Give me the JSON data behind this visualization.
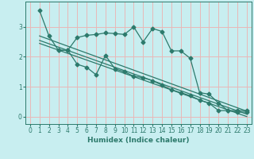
{
  "title": "",
  "xlabel": "Humidex (Indice chaleur)",
  "ylabel": "",
  "background_color": "#c8eef0",
  "grid_color": "#e8b8b8",
  "line_color": "#2d7a6c",
  "xlim": [
    -0.5,
    23.5
  ],
  "ylim": [
    -0.25,
    3.85
  ],
  "yticks": [
    0,
    1,
    2,
    3
  ],
  "xticks": [
    0,
    1,
    2,
    3,
    4,
    5,
    6,
    7,
    8,
    9,
    10,
    11,
    12,
    13,
    14,
    15,
    16,
    17,
    18,
    19,
    20,
    21,
    22,
    23
  ],
  "line1_x": [
    1,
    2,
    3,
    4,
    5,
    6,
    7,
    8,
    9,
    10,
    11,
    12,
    13,
    14,
    15,
    16,
    17,
    18,
    19,
    20,
    21,
    22,
    23
  ],
  "line1_y": [
    3.55,
    2.7,
    2.22,
    2.22,
    2.65,
    2.72,
    2.75,
    2.8,
    2.78,
    2.75,
    3.0,
    2.5,
    2.95,
    2.85,
    2.2,
    2.2,
    1.95,
    0.8,
    0.75,
    0.45,
    0.2,
    0.2,
    0.2
  ],
  "line2_x": [
    3,
    4,
    5,
    6,
    7,
    8,
    9,
    10,
    11,
    12,
    13,
    14,
    15,
    16,
    17,
    18,
    19,
    20,
    21,
    22,
    23
  ],
  "line2_y": [
    2.22,
    2.22,
    1.75,
    1.65,
    1.4,
    2.05,
    1.6,
    1.5,
    1.35,
    1.3,
    1.2,
    1.05,
    0.9,
    0.8,
    0.7,
    0.55,
    0.45,
    0.2,
    0.2,
    0.15,
    0.15
  ],
  "line3_x": [
    1,
    23
  ],
  "line3_y": [
    2.7,
    0.18
  ],
  "line4_x": [
    1,
    23
  ],
  "line4_y": [
    2.55,
    0.08
  ],
  "line5_x": [
    1,
    23
  ],
  "line5_y": [
    2.45,
    0.0
  ]
}
